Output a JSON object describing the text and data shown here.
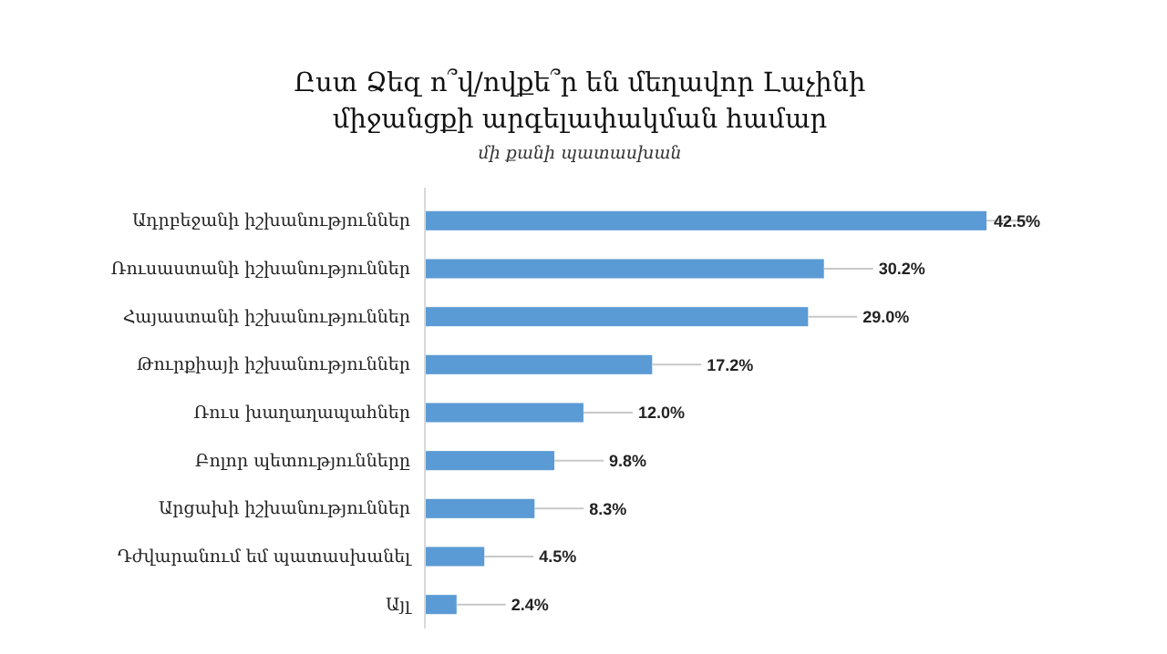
{
  "chart_data": {
    "type": "bar",
    "orientation": "horizontal",
    "title": "Ըստ Ձեզ ո՞վ/ովքե՞ր են մեղավոր Լաչինի միջանցքի արգելափակման համար",
    "subtitle": "մի քանի պատասխան",
    "categories": [
      "Ադրբեջանի իշխանություններ",
      "Ռուսաստանի իշխանություններ",
      "Հայաստանի իշխանություններ",
      "Թուրքիայի իշխանություններ",
      "Ռուս խաղաղապահներ",
      "Բոլոր պետությունները",
      "Արցախի իշխանություններ",
      "Դժվարանում եմ պատասխանել",
      "Այլ"
    ],
    "values": [
      42.5,
      30.2,
      29.0,
      17.2,
      12.0,
      9.8,
      8.3,
      4.5,
      2.4
    ],
    "value_labels": [
      "42.5%",
      "30.2%",
      "29.0%",
      "17.2%",
      "12.0%",
      "9.8%",
      "8.3%",
      "4.5%",
      "2.4%"
    ],
    "color": "#5b9bd5"
  }
}
